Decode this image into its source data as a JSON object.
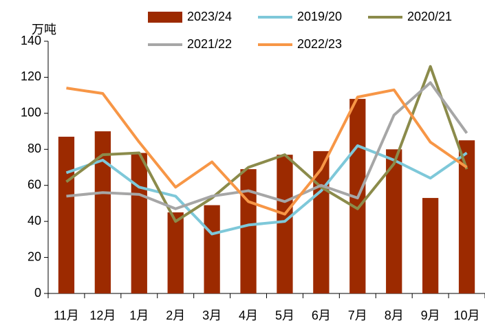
{
  "chart_data": {
    "type": "bar",
    "y_label": "万吨",
    "categories": [
      "11月",
      "12月",
      "1月",
      "2月",
      "3月",
      "4月",
      "5月",
      "6月",
      "7月",
      "8月",
      "9月",
      "10月"
    ],
    "series": [
      {
        "name": "2023/24",
        "type": "bar",
        "color": "#9c2a00",
        "values": [
          87,
          90,
          78,
          45,
          49,
          69,
          77,
          79,
          108,
          80,
          53,
          85
        ]
      },
      {
        "name": "2019/20",
        "type": "line",
        "color": "#7ec8d9",
        "values": [
          67,
          74,
          59,
          54,
          33,
          38,
          40,
          57,
          82,
          74,
          64,
          78
        ]
      },
      {
        "name": "2020/21",
        "type": "line",
        "color": "#8b8b4b",
        "values": [
          62,
          77,
          78,
          40,
          53,
          70,
          77,
          59,
          47,
          72,
          126,
          69
        ]
      },
      {
        "name": "2021/22",
        "type": "line",
        "color": "#a6a6a6",
        "values": [
          54,
          56,
          55,
          47,
          54,
          57,
          51,
          60,
          53,
          99,
          117,
          89
        ]
      },
      {
        "name": "2022/23",
        "type": "line",
        "color": "#f79646",
        "values": [
          114,
          111,
          84,
          59,
          73,
          51,
          44,
          69,
          109,
          113,
          84,
          70
        ]
      }
    ],
    "ylim": [
      0,
      140
    ],
    "yticks": [
      0,
      20,
      40,
      60,
      80,
      100,
      120,
      140
    ]
  }
}
